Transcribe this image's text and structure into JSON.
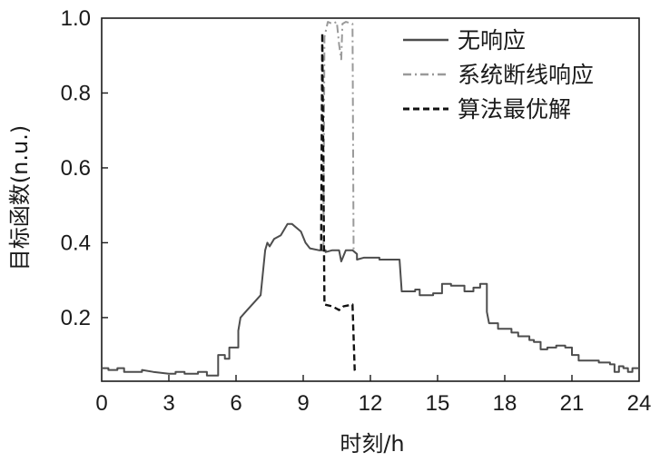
{
  "chart_data": {
    "type": "line",
    "xlabel": "时刻/h",
    "ylabel": "目标函数(n.u.)",
    "xlim": [
      0,
      24
    ],
    "ylim": [
      0.03,
      1.0
    ],
    "xticks": [
      "0",
      "3",
      "6",
      "9",
      "12",
      "15",
      "18",
      "21",
      "24"
    ],
    "yticks": [
      "0.2",
      "0.4",
      "0.6",
      "0.8",
      "1.0"
    ],
    "legend_position": "top-right",
    "grid": false,
    "series": [
      {
        "name": "无响应",
        "style": "solid",
        "color": "#4d4d4d",
        "points": [
          [
            0.0,
            0.065
          ],
          [
            0.3,
            0.065
          ],
          [
            0.3,
            0.06
          ],
          [
            0.7,
            0.06
          ],
          [
            0.7,
            0.065
          ],
          [
            1.0,
            0.065
          ],
          [
            1.0,
            0.055
          ],
          [
            1.5,
            0.055
          ],
          [
            1.5,
            0.055
          ],
          [
            1.8,
            0.055
          ],
          [
            1.8,
            0.06
          ],
          [
            2.3,
            0.055
          ],
          [
            3.0,
            0.05
          ],
          [
            3.3,
            0.05
          ],
          [
            3.3,
            0.055
          ],
          [
            3.7,
            0.055
          ],
          [
            3.7,
            0.05
          ],
          [
            4.3,
            0.05
          ],
          [
            4.3,
            0.055
          ],
          [
            4.7,
            0.055
          ],
          [
            4.7,
            0.045
          ],
          [
            5.2,
            0.045
          ],
          [
            5.2,
            0.1
          ],
          [
            5.5,
            0.1
          ],
          [
            5.5,
            0.09
          ],
          [
            5.7,
            0.09
          ],
          [
            5.7,
            0.12
          ],
          [
            6.1,
            0.12
          ],
          [
            6.1,
            0.165
          ],
          [
            6.2,
            0.2
          ],
          [
            6.5,
            0.22
          ],
          [
            6.8,
            0.24
          ],
          [
            7.1,
            0.26
          ],
          [
            7.3,
            0.38
          ],
          [
            7.4,
            0.4
          ],
          [
            7.5,
            0.39
          ],
          [
            7.7,
            0.41
          ],
          [
            8.0,
            0.42
          ],
          [
            8.3,
            0.45
          ],
          [
            8.5,
            0.45
          ],
          [
            8.9,
            0.43
          ],
          [
            9.1,
            0.4
          ],
          [
            9.3,
            0.385
          ],
          [
            9.7,
            0.38
          ],
          [
            10.0,
            0.38
          ],
          [
            10.0,
            0.375
          ],
          [
            10.3,
            0.38
          ],
          [
            10.6,
            0.38
          ],
          [
            10.7,
            0.35
          ],
          [
            10.9,
            0.38
          ],
          [
            11.2,
            0.38
          ],
          [
            11.4,
            0.37
          ],
          [
            11.4,
            0.355
          ],
          [
            11.7,
            0.36
          ],
          [
            12.0,
            0.36
          ],
          [
            12.4,
            0.36
          ],
          [
            12.4,
            0.355
          ],
          [
            13.3,
            0.355
          ],
          [
            13.4,
            0.27
          ],
          [
            14.0,
            0.27
          ],
          [
            14.0,
            0.275
          ],
          [
            14.2,
            0.275
          ],
          [
            14.2,
            0.26
          ],
          [
            14.8,
            0.26
          ],
          [
            14.8,
            0.265
          ],
          [
            15.2,
            0.265
          ],
          [
            15.2,
            0.29
          ],
          [
            15.6,
            0.29
          ],
          [
            15.6,
            0.285
          ],
          [
            16.2,
            0.285
          ],
          [
            16.2,
            0.27
          ],
          [
            16.6,
            0.27
          ],
          [
            16.6,
            0.28
          ],
          [
            16.9,
            0.28
          ],
          [
            16.9,
            0.29
          ],
          [
            17.2,
            0.29
          ],
          [
            17.2,
            0.215
          ],
          [
            17.3,
            0.185
          ],
          [
            17.7,
            0.185
          ],
          [
            17.7,
            0.17
          ],
          [
            18.3,
            0.17
          ],
          [
            18.3,
            0.16
          ],
          [
            18.6,
            0.16
          ],
          [
            18.6,
            0.15
          ],
          [
            19.1,
            0.15
          ],
          [
            19.1,
            0.14
          ],
          [
            19.3,
            0.14
          ],
          [
            19.3,
            0.135
          ],
          [
            19.6,
            0.135
          ],
          [
            19.6,
            0.115
          ],
          [
            19.9,
            0.115
          ],
          [
            19.9,
            0.12
          ],
          [
            20.3,
            0.12
          ],
          [
            20.3,
            0.125
          ],
          [
            20.7,
            0.125
          ],
          [
            20.7,
            0.12
          ],
          [
            21.0,
            0.12
          ],
          [
            21.0,
            0.1
          ],
          [
            21.3,
            0.1
          ],
          [
            21.3,
            0.085
          ],
          [
            22.2,
            0.085
          ],
          [
            22.2,
            0.08
          ],
          [
            22.7,
            0.08
          ],
          [
            22.7,
            0.075
          ],
          [
            22.9,
            0.075
          ],
          [
            22.9,
            0.055
          ],
          [
            23.1,
            0.055
          ],
          [
            23.1,
            0.07
          ],
          [
            23.3,
            0.07
          ],
          [
            23.3,
            0.065
          ],
          [
            23.5,
            0.065
          ],
          [
            23.5,
            0.055
          ],
          [
            23.7,
            0.055
          ],
          [
            23.7,
            0.065
          ],
          [
            24.0,
            0.065
          ]
        ]
      },
      {
        "name": "系统断线响应",
        "style": "dashdot",
        "color": "#9a9a9a",
        "points": [
          [
            9.9,
            0.38
          ],
          [
            9.95,
            0.95
          ],
          [
            10.1,
            0.99
          ],
          [
            10.3,
            0.985
          ],
          [
            10.5,
            0.99
          ],
          [
            10.6,
            0.93
          ],
          [
            10.7,
            0.89
          ],
          [
            10.75,
            0.985
          ],
          [
            10.9,
            0.99
          ],
          [
            11.2,
            0.985
          ],
          [
            11.25,
            0.38
          ]
        ]
      },
      {
        "name": "算法最优解",
        "style": "dashed",
        "color": "#111111",
        "points": [
          [
            9.8,
            0.38
          ],
          [
            9.85,
            0.96
          ],
          [
            9.95,
            0.235
          ],
          [
            10.3,
            0.23
          ],
          [
            10.6,
            0.22
          ],
          [
            10.8,
            0.23
          ],
          [
            11.2,
            0.235
          ],
          [
            11.3,
            0.06
          ],
          [
            11.33,
            0.055
          ]
        ]
      }
    ]
  }
}
